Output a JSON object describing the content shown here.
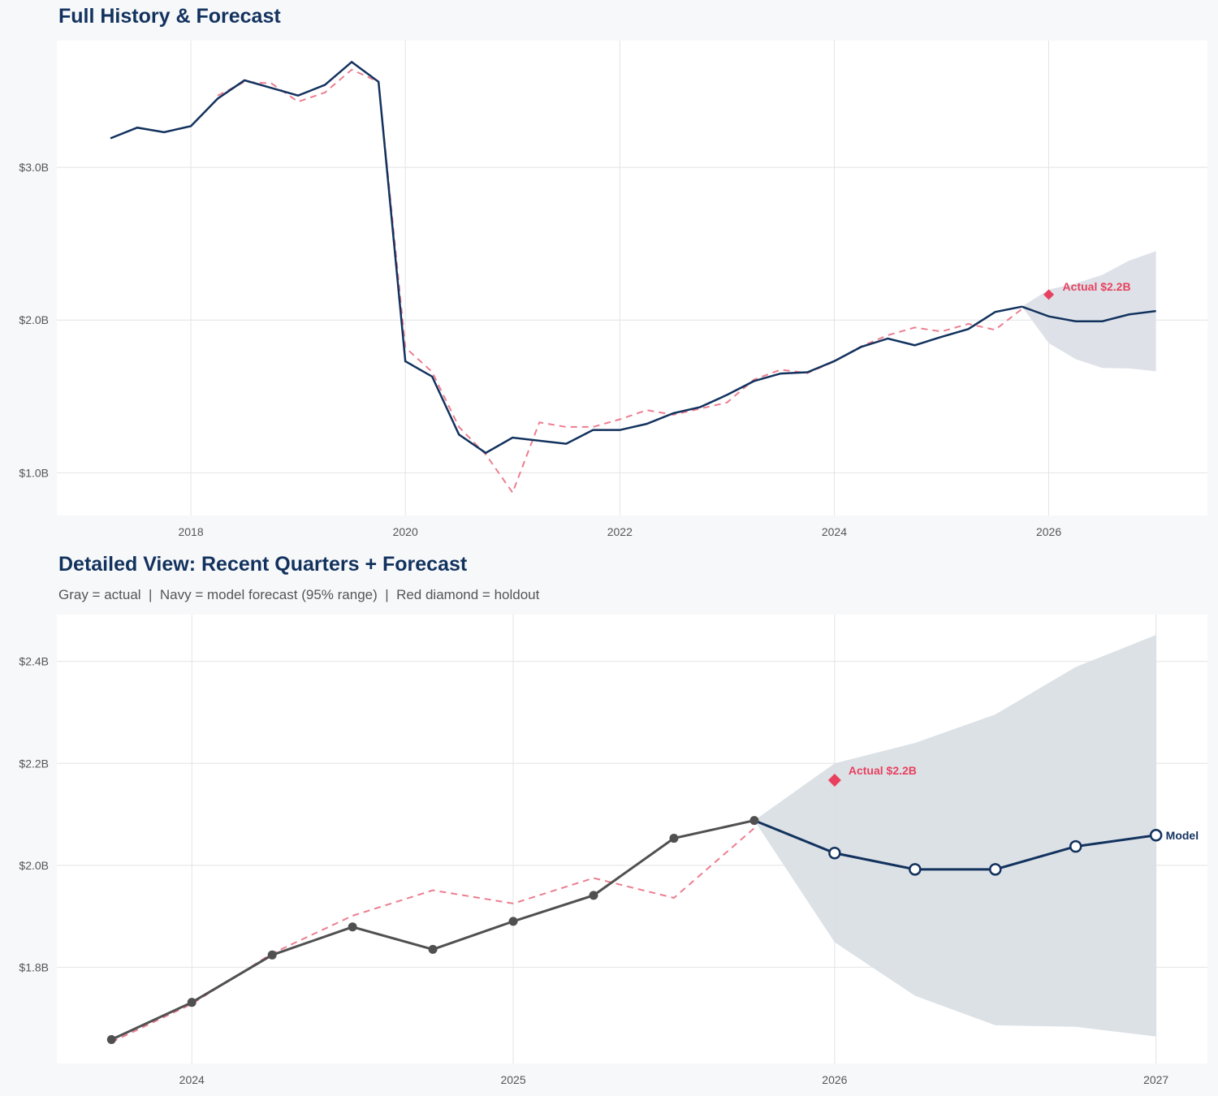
{
  "colors": {
    "navy": "#12325e",
    "gray": "#505050",
    "red": "#e8415f",
    "fitted": "#ec7e90",
    "band": "#dadfe5",
    "grid": "#e4e4e4"
  },
  "chart_data": [
    {
      "type": "line",
      "title": "Full History & Forecast",
      "xlim": [
        2016.75,
        2027.48
      ],
      "ylim": [
        0.72,
        3.83
      ],
      "xticks": [
        2018,
        2020,
        2022,
        2024,
        2026
      ],
      "xtick_labels": [
        "2018",
        "2020",
        "2022",
        "2024",
        "2026"
      ],
      "yticks": [
        1.0,
        2.0,
        3.0
      ],
      "ytick_labels": [
        "$1.0B",
        "$2.0B",
        "$3.0B"
      ],
      "grid": true
    },
    {
      "type": "line",
      "title": "Detailed View: Recent Quarters + Forecast",
      "subtitle": "Gray = actual  |  Navy = model forecast (95% range)  |  Red diamond = holdout",
      "xlim": [
        2023.58,
        2027.16
      ],
      "ylim": [
        1.611,
        2.492
      ],
      "xticks": [
        2024,
        2025,
        2026,
        2027
      ],
      "xtick_labels": [
        "2024",
        "2025",
        "2026",
        "2027"
      ],
      "yticks": [
        1.8,
        2.0,
        2.2,
        2.4
      ],
      "ytick_labels": [
        "$1.8B",
        "$2.0B",
        "$2.2B",
        "$2.4B"
      ],
      "grid": true,
      "end_label": "Model"
    }
  ],
  "series": {
    "actual": {
      "x": [
        2017.25,
        2017.5,
        2017.75,
        2018,
        2018.25,
        2018.5,
        2018.75,
        2019,
        2019.25,
        2019.5,
        2019.75,
        2020,
        2020.25,
        2020.5,
        2020.75,
        2021,
        2021.25,
        2021.5,
        2021.75,
        2022,
        2022.25,
        2022.5,
        2022.75,
        2023,
        2023.25,
        2023.5,
        2023.75,
        2024,
        2024.25,
        2024.5,
        2024.75,
        2025,
        2025.25,
        2025.5,
        2025.75
      ],
      "y": [
        3.19,
        3.26,
        3.23,
        3.27,
        3.45,
        3.57,
        3.52,
        3.47,
        3.54,
        3.69,
        3.56,
        1.73,
        1.63,
        1.25,
        1.13,
        1.23,
        1.21,
        1.19,
        1.28,
        1.28,
        1.32,
        1.39,
        1.43,
        1.51,
        1.6,
        1.65,
        1.658,
        1.731,
        1.824,
        1.879,
        1.835,
        1.89,
        1.941,
        2.053,
        2.088
      ]
    },
    "fitted": {
      "x": [
        2018.25,
        2018.5,
        2018.75,
        2019,
        2019.25,
        2019.5,
        2019.75,
        2020,
        2020.25,
        2020.5,
        2020.75,
        2021,
        2021.25,
        2021.5,
        2021.75,
        2022,
        2022.25,
        2022.5,
        2022.75,
        2023,
        2023.25,
        2023.5,
        2023.75,
        2024,
        2024.25,
        2024.5,
        2024.75,
        2025,
        2025.25,
        2025.5,
        2025.75
      ],
      "y": [
        3.47,
        3.56,
        3.55,
        3.43,
        3.49,
        3.64,
        3.56,
        1.82,
        1.66,
        1.3,
        1.12,
        0.87,
        1.33,
        1.3,
        1.3,
        1.35,
        1.41,
        1.38,
        1.42,
        1.46,
        1.61,
        1.675,
        1.653,
        1.728,
        1.827,
        1.901,
        1.951,
        1.925,
        1.975,
        1.936,
        2.073
      ]
    },
    "forecast": {
      "x": [
        2025.75,
        2026,
        2026.25,
        2026.5,
        2026.75,
        2027
      ],
      "y": [
        2.088,
        2.024,
        1.992,
        1.992,
        2.037,
        2.059
      ],
      "upper": [
        2.088,
        2.2,
        2.24,
        2.296,
        2.389,
        2.452
      ],
      "lower": [
        2.088,
        1.849,
        1.744,
        1.686,
        1.683,
        1.664
      ]
    },
    "holdout": {
      "x": 2026,
      "y": 2.167,
      "label": "Actual $2.2B"
    }
  }
}
